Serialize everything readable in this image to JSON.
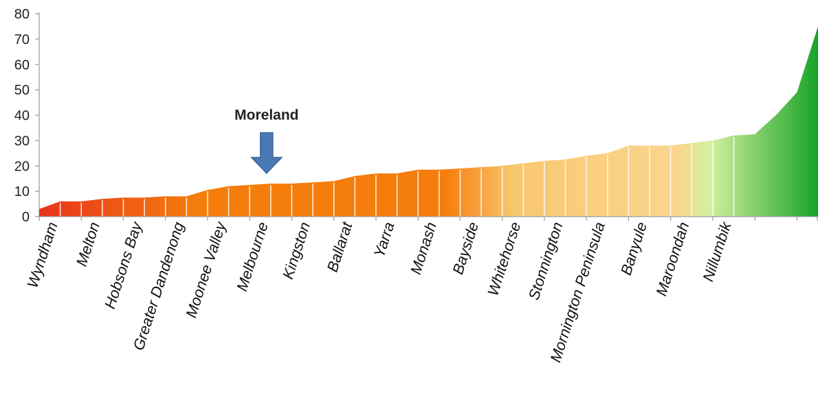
{
  "chart_data": {
    "type": "area",
    "ylim": [
      0,
      80
    ],
    "yticks": [
      0,
      10,
      20,
      30,
      40,
      50,
      60,
      70,
      80
    ],
    "grid": false,
    "legend": "none",
    "values": [
      3,
      6,
      6,
      7,
      7.5,
      7.5,
      8,
      8,
      10.5,
      12,
      12.5,
      13,
      13,
      13.5,
      14,
      16,
      17,
      17,
      18.5,
      18.5,
      19,
      19.5,
      20,
      21,
      22,
      22.5,
      24,
      25,
      28,
      28,
      28,
      29,
      30,
      32,
      32.5,
      40,
      49,
      75
    ],
    "category_labels": [
      {
        "index": 0,
        "label": "Wyndham"
      },
      {
        "index": 2,
        "label": "Melton"
      },
      {
        "index": 4,
        "label": "Hobsons Bay"
      },
      {
        "index": 6,
        "label": "Greater Dandenong"
      },
      {
        "index": 8,
        "label": "Moonee Valley"
      },
      {
        "index": 10,
        "label": "Melbourne"
      },
      {
        "index": 12,
        "label": "Kingston"
      },
      {
        "index": 14,
        "label": "Ballarat"
      },
      {
        "index": 16,
        "label": "Yarra"
      },
      {
        "index": 18,
        "label": "Monash"
      },
      {
        "index": 20,
        "label": "Bayside"
      },
      {
        "index": 22,
        "label": "Whitehorse"
      },
      {
        "index": 24,
        "label": "Stonnington"
      },
      {
        "index": 26,
        "label": "Mornington Peninsula"
      },
      {
        "index": 28,
        "label": "Banyule"
      },
      {
        "index": 30,
        "label": "Maroondah"
      },
      {
        "index": 32,
        "label": "Nillumbik"
      }
    ],
    "annotation": {
      "label": "Moreland",
      "index": 11
    },
    "colors": {
      "red": "#e8321c",
      "orange": "#f57d0c",
      "light_orange": "#f8c870",
      "pale_yellow": "#fbd58e",
      "pale_green": "#d5f0a0",
      "green": "#18a428",
      "arrow": "#4a7ab5"
    }
  }
}
